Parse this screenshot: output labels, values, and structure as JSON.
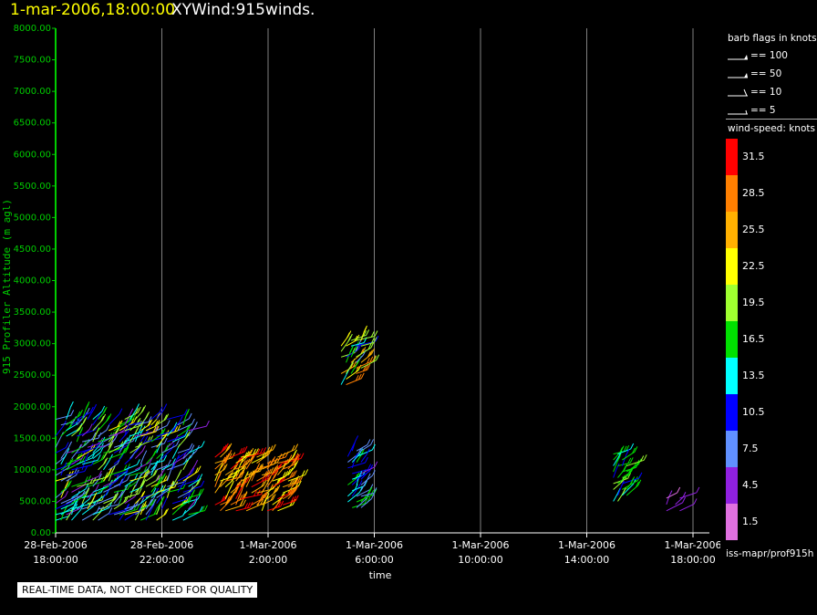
{
  "header": {
    "date_time": "1-mar-2006,18:00:00",
    "title": "XYWind:915winds."
  },
  "chart_data": {
    "type": "wind-barb",
    "xlabel": "time",
    "ylabel": "915 Profiler Altitude (m agl)",
    "ylim": [
      0,
      8000
    ],
    "yticks": [
      "0.00",
      "500.00",
      "1000.00",
      "1500.00",
      "2000.00",
      "2500.00",
      "3000.00",
      "3500.00",
      "4000.00",
      "4500.00",
      "5000.00",
      "5500.00",
      "6000.00",
      "6500.00",
      "7000.00",
      "7500.00",
      "8000.00"
    ],
    "xticks": [
      {
        "date": "28-Feb-2006",
        "time": "18:00:00"
      },
      {
        "date": "28-Feb-2006",
        "time": "22:00:00"
      },
      {
        "date": "1-Mar-2006",
        "time": "2:00:00"
      },
      {
        "date": "1-Mar-2006",
        "time": "6:00:00"
      },
      {
        "date": "1-Mar-2006",
        "time": "10:00:00"
      },
      {
        "date": "1-Mar-2006",
        "time": "14:00:00"
      },
      {
        "date": "1-Mar-2006",
        "time": "18:00:00"
      }
    ],
    "grid": "vertical",
    "observation_blocks": [
      {
        "time_range": "28-Feb-2006 18:00 - 28-Feb-2006 23:00",
        "altitude_range": [
          200,
          1800
        ],
        "speed_range_knots": [
          4.5,
          22.5
        ]
      },
      {
        "time_range": "1-Mar-2006 00:00 - 1-Mar-2006 02:45",
        "altitude_range": [
          350,
          1200
        ],
        "speed_range_knots": [
          22.5,
          31.5
        ]
      },
      {
        "time_range": "1-Mar-2006 04:45 - 1-Mar-2006 05:30",
        "altitude_range": [
          2350,
          3050
        ],
        "speed_range_knots": [
          7.5,
          28.5
        ]
      },
      {
        "time_range": "1-Mar-2006 05:00 - 1-Mar-2006 05:30",
        "altitude_range": [
          400,
          1300
        ],
        "speed_range_knots": [
          4.5,
          16.5
        ]
      },
      {
        "time_range": "1-Mar-2006 15:00 - 1-Mar-2006 15:30",
        "altitude_range": [
          500,
          1250
        ],
        "speed_range_knots": [
          10.5,
          19.5
        ]
      },
      {
        "time_range": "1-Mar-2006 17:00 - 1-Mar-2006 17:30",
        "altitude_range": [
          350,
          550
        ],
        "speed_range_knots": [
          1.5,
          4.5
        ]
      }
    ]
  },
  "legend": {
    "barb_title": "barb flags in knots",
    "barb_entries": [
      "== 100",
      "== 50",
      "== 10",
      "== 5"
    ],
    "speed_title": "wind-speed: knots",
    "speed_scale": [
      {
        "value": "31.5",
        "color": "#ff0000"
      },
      {
        "value": "28.5",
        "color": "#ff7f00"
      },
      {
        "value": "25.5",
        "color": "#ffb000"
      },
      {
        "value": "22.5",
        "color": "#ffff00"
      },
      {
        "value": "19.5",
        "color": "#a0ff30"
      },
      {
        "value": "16.5",
        "color": "#00e000"
      },
      {
        "value": "13.5",
        "color": "#00ffff"
      },
      {
        "value": "10.5",
        "color": "#0000ff"
      },
      {
        "value": "7.5",
        "color": "#6090ff"
      },
      {
        "value": "4.5",
        "color": "#9020e0"
      },
      {
        "value": "1.5",
        "color": "#e070e0"
      }
    ],
    "source": "iss-mapr/prof915h"
  },
  "footer": {
    "quality_note": "REAL-TIME DATA, NOT CHECKED FOR QUALITY"
  },
  "colors": {
    "axis": "#00cc00",
    "title_date": "#ffff00",
    "grid": "#808080",
    "background": "#000000"
  }
}
